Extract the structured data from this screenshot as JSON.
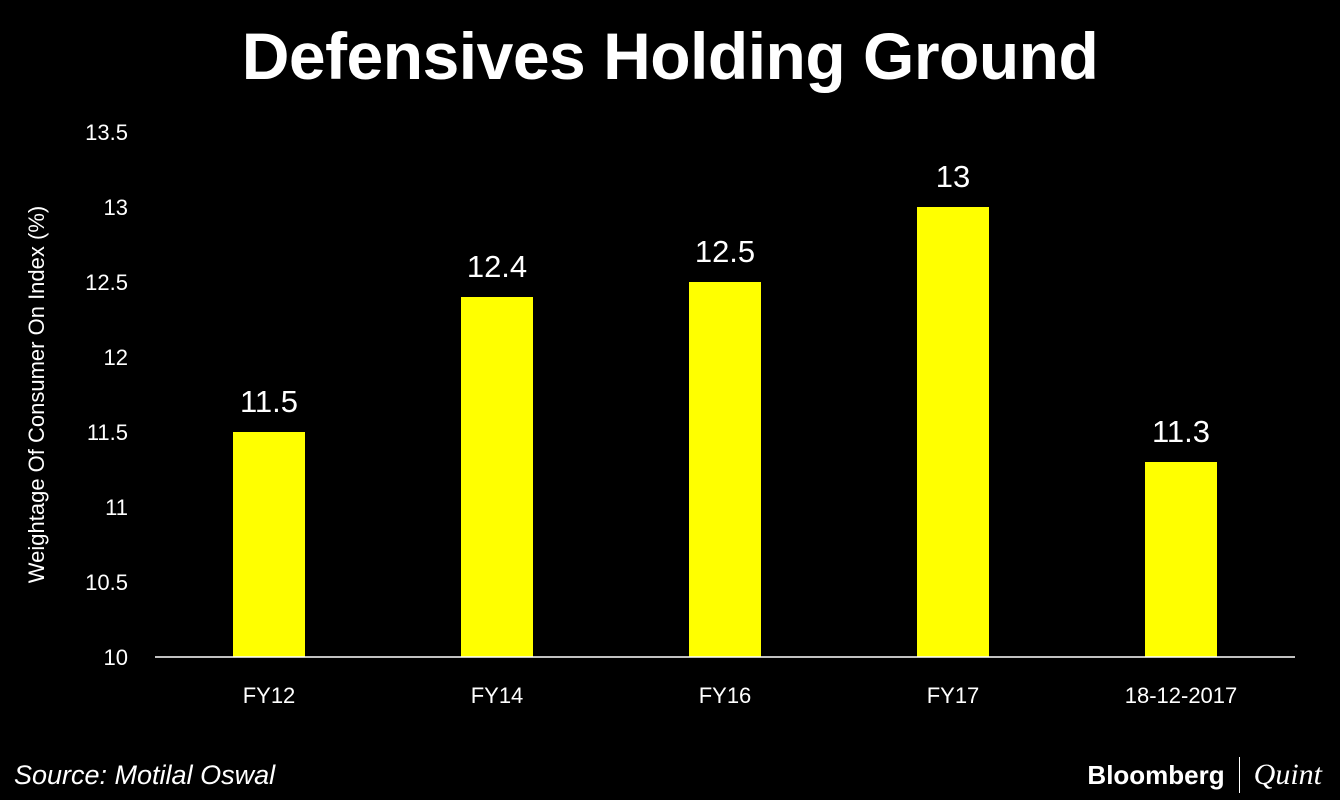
{
  "title": "Defensives Holding Ground",
  "source": "Source: Motilal Oswal",
  "brand": {
    "left": "Bloomberg",
    "right": "Quint"
  },
  "colors": {
    "background": "#000000",
    "bar": "#ffff00",
    "text": "#ffffff",
    "axis": "#ffffff"
  },
  "chart_data": {
    "type": "bar",
    "title": "Defensives Holding Ground",
    "xlabel": "",
    "ylabel": "Weightage Of Consumer On Index (%)",
    "categories": [
      "FY12",
      "FY14",
      "FY16",
      "FY17",
      "18-12-2017"
    ],
    "values": [
      11.5,
      12.4,
      12.5,
      13,
      11.3
    ],
    "data_labels": [
      "11.5",
      "12.4",
      "12.5",
      "13",
      "11.3"
    ],
    "ylim": [
      10,
      13.5
    ],
    "yticks": [
      "10",
      "10.5",
      "11",
      "11.5",
      "12",
      "12.5",
      "13",
      "13.5"
    ],
    "grid": false,
    "legend": "none"
  }
}
